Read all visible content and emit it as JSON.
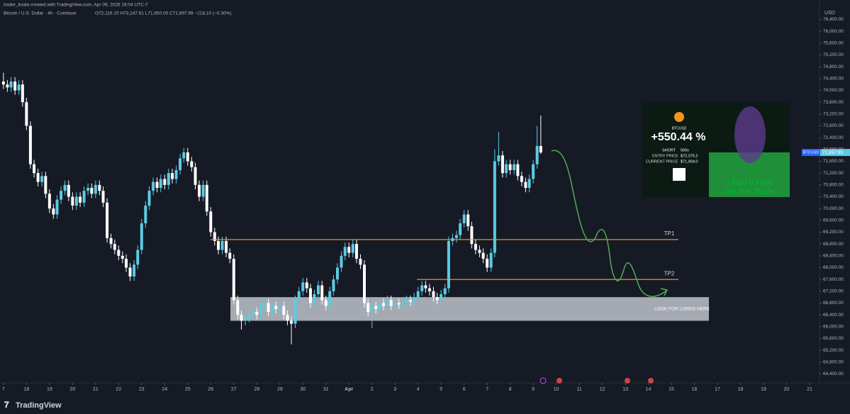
{
  "header": {
    "author_line": "trader_koala created with TradingView.com, Apr 09, 2026 16:04 UTC-7",
    "symbol_line": "Bitcoin / U.S. Dollar · 4h · Coinbase",
    "ohlc_line": "O72,116.10 H73,147.81 L71,850.00 C71,897.99 −218.10 (−0.30%)"
  },
  "chart_data": {
    "type": "candlestick",
    "up_color": "#5ccbe3",
    "down_color": "#ffffff",
    "x": [
      17,
      17.17,
      17.33,
      17.5,
      17.67,
      17.83,
      18,
      18.17,
      18.33,
      18.5,
      18.67,
      18.83,
      19,
      19.17,
      19.33,
      19.5,
      19.67,
      19.83,
      20,
      20.17,
      20.33,
      20.5,
      20.67,
      20.83,
      21,
      21.17,
      21.33,
      21.5,
      21.67,
      21.83,
      22,
      22.17,
      22.33,
      22.5,
      22.67,
      22.83,
      23,
      23.17,
      23.33,
      23.5,
      23.67,
      23.83,
      24,
      24.17,
      24.33,
      24.5,
      24.67,
      24.83,
      25,
      25.17,
      25.33,
      25.5,
      25.67,
      25.83,
      26,
      26.17,
      26.33,
      26.5,
      26.67,
      26.83,
      27,
      27.17,
      27.33,
      27.5,
      27.67,
      27.83,
      28,
      28.17,
      28.33,
      28.5,
      28.67,
      28.83,
      29,
      29.17,
      29.33,
      29.5,
      29.67,
      29.83,
      30,
      30.17,
      30.33,
      30.5,
      30.67,
      30.83,
      31,
      31.17,
      31.33,
      31.5,
      31.67,
      31.83,
      32,
      32.17,
      32.33,
      32.5,
      32.67,
      32.83,
      33,
      33.17,
      33.33,
      33.5,
      33.67,
      33.83,
      34,
      34.17,
      34.33,
      34.5,
      34.67,
      34.83,
      35,
      35.17,
      35.33,
      35.5,
      35.67,
      35.83,
      36,
      36.17,
      36.33,
      36.5,
      36.67,
      36.83,
      37,
      37.17,
      37.33,
      37.5,
      37.67,
      37.83,
      38,
      38.17,
      38.33,
      38.5,
      38.67,
      38.83,
      39,
      39.17,
      39.33,
      39.5,
      39.67,
      39.83,
      40,
      40.17,
      40.33
    ],
    "open": [
      74300,
      74200,
      74100,
      74300,
      74000,
      74200,
      73600,
      72800,
      71500,
      71200,
      70900,
      71100,
      70500,
      70000,
      69800,
      70300,
      70600,
      70800,
      70400,
      70100,
      70400,
      70200,
      70600,
      70700,
      70500,
      70800,
      70600,
      70200,
      69000,
      68800,
      68600,
      68400,
      68300,
      68000,
      67700,
      68100,
      68600,
      69500,
      70100,
      70600,
      70900,
      70700,
      71000,
      70800,
      71200,
      71000,
      71300,
      71700,
      71900,
      71600,
      71400,
      70800,
      70400,
      70800,
      69900,
      69200,
      68900,
      68600,
      68900,
      68500,
      68300,
      66900,
      66400,
      66200,
      66300,
      66400,
      66500,
      66400,
      66700,
      66800,
      66500,
      66700,
      66600,
      66700,
      66400,
      66200,
      66100,
      66900,
      67200,
      67500,
      67300,
      66800,
      67100,
      67400,
      66900,
      66700,
      67200,
      67600,
      68000,
      68400,
      68700,
      68500,
      68800,
      68300,
      68100,
      66800,
      66500,
      66700,
      66600,
      66800,
      66700,
      66900,
      66700,
      66800,
      66750,
      66800,
      66900,
      66850,
      67000,
      67200,
      67400,
      67300,
      67200,
      67000,
      66900,
      67100,
      67300,
      68900,
      69000,
      69100,
      69500,
      69800,
      69400,
      68800,
      68600,
      68500,
      68300,
      68000,
      68500,
      71600,
      71800,
      71200,
      71500,
      71300,
      71500,
      71100,
      70900,
      70700,
      71000,
      71500,
      72116.1
    ],
    "high": [
      74600,
      74350,
      74450,
      74450,
      74350,
      74350,
      73750,
      72950,
      71650,
      71350,
      71250,
      71250,
      70650,
      70150,
      70450,
      70750,
      70950,
      70950,
      70550,
      70550,
      70550,
      70750,
      70850,
      70850,
      70950,
      70950,
      70750,
      70350,
      69150,
      68950,
      68750,
      68550,
      68450,
      68150,
      68250,
      68750,
      69650,
      70250,
      70750,
      71050,
      71050,
      71150,
      71150,
      71350,
      71350,
      71450,
      71850,
      72050,
      72050,
      71750,
      71550,
      70950,
      70950,
      70950,
      70050,
      69350,
      69050,
      69050,
      69050,
      68650,
      68450,
      67050,
      66550,
      66450,
      66550,
      66650,
      66650,
      66850,
      66950,
      66950,
      66850,
      66850,
      66850,
      66850,
      66550,
      66350,
      67050,
      67350,
      67650,
      67650,
      67450,
      67250,
      67550,
      67550,
      67050,
      67350,
      67750,
      68150,
      68550,
      68850,
      68850,
      68950,
      68950,
      68450,
      68250,
      66950,
      66850,
      66850,
      66950,
      66950,
      67050,
      67050,
      66950,
      66950,
      66950,
      67050,
      67050,
      67150,
      67350,
      67550,
      67550,
      67450,
      67350,
      67150,
      67250,
      67450,
      69050,
      69150,
      69250,
      69650,
      69950,
      69950,
      69550,
      68950,
      68750,
      68650,
      68450,
      68650,
      72000,
      72600,
      71950,
      71650,
      71650,
      71650,
      71650,
      71250,
      71050,
      71150,
      71650,
      72800,
      73147.81
    ],
    "low": [
      74050,
      73950,
      73950,
      73850,
      73850,
      73450,
      72650,
      71350,
      71050,
      70750,
      70750,
      70350,
      69850,
      69650,
      69650,
      70150,
      70450,
      70250,
      69950,
      69950,
      70050,
      70050,
      70450,
      70350,
      70350,
      70450,
      70050,
      68850,
      68650,
      68450,
      68250,
      68150,
      67850,
      67550,
      67550,
      67950,
      68450,
      69350,
      69950,
      70450,
      70550,
      70550,
      70650,
      70650,
      70850,
      70850,
      71150,
      71550,
      71450,
      71250,
      70650,
      70250,
      70250,
      69750,
      69050,
      68750,
      68450,
      68450,
      68350,
      68150,
      66750,
      66250,
      65900,
      66050,
      66150,
      66250,
      66250,
      66250,
      66550,
      66350,
      66350,
      66450,
      66450,
      66250,
      66050,
      65400,
      65950,
      66750,
      67050,
      67150,
      66650,
      66650,
      66950,
      66750,
      66550,
      66550,
      67050,
      67450,
      67850,
      68250,
      68350,
      68350,
      68150,
      67950,
      66650,
      66350,
      65950,
      66450,
      66450,
      66550,
      66550,
      66550,
      66550,
      66600,
      66600,
      66650,
      66700,
      66700,
      66850,
      67050,
      67150,
      67050,
      66850,
      66750,
      66750,
      66950,
      67150,
      68750,
      68850,
      68950,
      69350,
      69250,
      68650,
      68450,
      68350,
      68150,
      67850,
      67850,
      68350,
      71450,
      71050,
      71050,
      71150,
      71150,
      70950,
      70750,
      70550,
      70550,
      70850,
      71350,
      71850
    ],
    "close": [
      74200,
      74100,
      74300,
      74000,
      74200,
      73600,
      72800,
      71500,
      71200,
      70900,
      71100,
      70500,
      70000,
      69800,
      70300,
      70600,
      70800,
      70400,
      70100,
      70400,
      70200,
      70600,
      70700,
      70500,
      70800,
      70600,
      70200,
      69000,
      68800,
      68600,
      68400,
      68300,
      68000,
      67700,
      68100,
      68600,
      69500,
      70100,
      70600,
      70900,
      70700,
      71000,
      70800,
      71200,
      71000,
      71300,
      71700,
      71900,
      71600,
      71400,
      70800,
      70400,
      70800,
      69900,
      69200,
      68900,
      68600,
      68900,
      68500,
      68300,
      66900,
      66400,
      66200,
      66300,
      66400,
      66500,
      66400,
      66700,
      66800,
      66500,
      66700,
      66600,
      66700,
      66400,
      66200,
      66100,
      66900,
      67200,
      67500,
      67300,
      66800,
      67100,
      67400,
      66900,
      66700,
      67200,
      67600,
      68000,
      68400,
      68700,
      68500,
      68800,
      68300,
      68100,
      66800,
      66500,
      66700,
      66600,
      66800,
      66700,
      66900,
      66700,
      66800,
      66750,
      66800,
      66900,
      66850,
      67000,
      67200,
      67400,
      67300,
      67200,
      67000,
      66900,
      67100,
      67300,
      68900,
      69000,
      69100,
      69500,
      69800,
      69400,
      68800,
      68600,
      68500,
      68300,
      68000,
      68500,
      71600,
      71800,
      71200,
      71500,
      71300,
      71500,
      71100,
      70900,
      70700,
      71000,
      71500,
      72116.1,
      71897.99
    ],
    "xlim": [
      16.85,
      52.4
    ],
    "xticks": [
      {
        "value": 17,
        "label": "7"
      },
      18,
      19,
      20,
      21,
      22,
      23,
      24,
      25,
      26,
      27,
      28,
      29,
      30,
      31,
      {
        "value": 32,
        "label": "Apr"
      },
      {
        "value": 33,
        "label": "2"
      },
      {
        "value": 34,
        "label": "3"
      },
      {
        "value": 35,
        "label": "4"
      },
      {
        "value": 36,
        "label": "5"
      },
      {
        "value": 37,
        "label": "6"
      },
      {
        "value": 38,
        "label": "7"
      },
      {
        "value": 39,
        "label": "8"
      },
      {
        "value": 40,
        "label": "9"
      },
      {
        "value": 41,
        "label": "10"
      },
      {
        "value": 42,
        "label": "11"
      },
      {
        "value": 43,
        "label": "12"
      },
      {
        "value": 44,
        "label": "13"
      },
      {
        "value": 45,
        "label": "14"
      },
      {
        "value": 46,
        "label": "15"
      },
      {
        "value": 47,
        "label": "16"
      },
      {
        "value": 48,
        "label": "17"
      },
      {
        "value": 49,
        "label": "18"
      },
      {
        "value": 50,
        "label": "19"
      },
      {
        "value": 51,
        "label": "20"
      },
      {
        "value": 52,
        "label": "21"
      }
    ],
    "ylim": [
      64100,
      77060
    ],
    "yticks": [
      {
        "value": 64400,
        "label": "64,400.00"
      },
      {
        "value": 64800,
        "label": "64,800.00"
      },
      {
        "value": 65200,
        "label": "65,200.00"
      },
      {
        "value": 65600,
        "label": "65,600.00"
      },
      {
        "value": 66000,
        "label": "66,000.00"
      },
      {
        "value": 66400,
        "label": "66,400.00"
      },
      {
        "value": 66800,
        "label": "66,800.00"
      },
      {
        "value": 67200,
        "label": "67,200.00"
      },
      {
        "value": 67600,
        "label": "67,600.00"
      },
      {
        "value": 68000,
        "label": "68,000.00"
      },
      {
        "value": 68400,
        "label": "68,400.00"
      },
      {
        "value": 68800,
        "label": "68,800.00"
      },
      {
        "value": 69200,
        "label": "69,200.00"
      },
      {
        "value": 69600,
        "label": "69,600.00"
      },
      {
        "value": 70000,
        "label": "70,000.00"
      },
      {
        "value": 70400,
        "label": "70,400.00"
      },
      {
        "value": 70800,
        "label": "70,800.00"
      },
      {
        "value": 71200,
        "label": "71,200.00"
      },
      {
        "value": 71600,
        "label": "71,600.00"
      },
      {
        "value": 72000,
        "label": "72,000.00"
      },
      {
        "value": 72400,
        "label": "72,400.00"
      },
      {
        "value": 72800,
        "label": "72,800.00"
      },
      {
        "value": 73200,
        "label": "73,200.00"
      },
      {
        "value": 73600,
        "label": "73,600.00"
      },
      {
        "value": 74000,
        "label": "74,000.00"
      },
      {
        "value": 74400,
        "label": "74,400.00"
      },
      {
        "value": 74800,
        "label": "74,800.00"
      },
      {
        "value": 75200,
        "label": "75,200.00"
      },
      {
        "value": 75600,
        "label": "75,600.00"
      },
      {
        "value": 76000,
        "label": "76,000.00"
      },
      {
        "value": 76400,
        "label": "76,400.00"
      }
    ],
    "currency": "USD",
    "price_tag": {
      "symbol": "BTCUSD",
      "value": 71897.99,
      "label": "71,897.99"
    },
    "levels": [
      {
        "name": "TP1",
        "value": 68950,
        "color": "#f5a623"
      },
      {
        "name": "TP2",
        "value": 67600,
        "color": "#f5a623"
      }
    ],
    "zone": {
      "label": "LOOK FOR LONGS HERE",
      "low": 66200,
      "high": 67000
    }
  },
  "ad": {
    "symbol": "BTCUSD",
    "gain": "+550.44 %",
    "side": "SHORT",
    "leverage": "500x",
    "entry_label": "ENTRY PRICE",
    "entry": "$72,075.2",
    "current_label": "CURRENT PRICE",
    "current": "$71,904.0",
    "slogan_1": "I Paid 0 Fees",
    "slogan_2": "On This Trade"
  },
  "footer": {
    "brand": "TradingView"
  }
}
